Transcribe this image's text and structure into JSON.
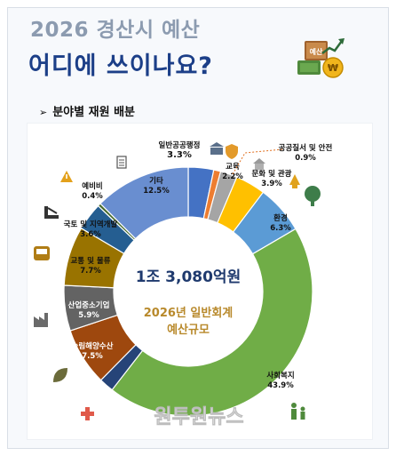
{
  "header": {
    "title_line1": "2026 경산시 예산",
    "title_line2": "어디에 쓰이나요?",
    "badge_label": "예산"
  },
  "section": {
    "bullet": "➢",
    "label": "분야별 재원 배분"
  },
  "center": {
    "total": "1조 3,080억원",
    "line1": "2026년 일반회계",
    "line2": "예산규모"
  },
  "watermark": "원투원뉴스",
  "colors": {
    "title_gray": "#8c9bb0",
    "title_navy": "#1c3f88",
    "center_total": "#1f3a6e",
    "center_sub": "#b8892b"
  },
  "chart_data": {
    "type": "donut",
    "unit": "%",
    "slices": [
      {
        "name": "일반공공행정",
        "value": 3.3,
        "color": "#4472c4",
        "icon": "government-building-icon"
      },
      {
        "name": "공공질서 및 안전",
        "value": 0.9,
        "color": "#ed7d31",
        "icon": "shield-icon"
      },
      {
        "name": "교육",
        "value": 2.2,
        "color": "#a5a5a5",
        "icon": "school-icon"
      },
      {
        "name": "문화 및 관광",
        "value": 3.9,
        "color": "#ffc000",
        "icon": "temple-icon"
      },
      {
        "name": "환경",
        "value": 6.3,
        "color": "#5b9bd5",
        "icon": "tree-icon"
      },
      {
        "name": "사회복지",
        "value": 43.9,
        "color": "#70ad47",
        "icon": "family-icon"
      },
      {
        "name": "보건",
        "value": 1.9,
        "color": "#264478",
        "icon": "health-cross-icon"
      },
      {
        "name": "농림해양수산",
        "value": 7.5,
        "color": "#9e480e",
        "icon": "leaf-icon"
      },
      {
        "name": "산업중소기업",
        "value": 5.9,
        "color": "#636363",
        "icon": "factory-icon"
      },
      {
        "name": "교통 및 물류",
        "value": 7.7,
        "color": "#997300",
        "icon": "bus-icon"
      },
      {
        "name": "국토 및 지역개발",
        "value": 3.6,
        "color": "#255e91",
        "icon": "construction-icon"
      },
      {
        "name": "예비비",
        "value": 0.4,
        "color": "#43682b",
        "icon": "warning-icon"
      },
      {
        "name": "기타",
        "value": 12.5,
        "color": "#698ed0",
        "icon": "document-icon"
      }
    ]
  }
}
